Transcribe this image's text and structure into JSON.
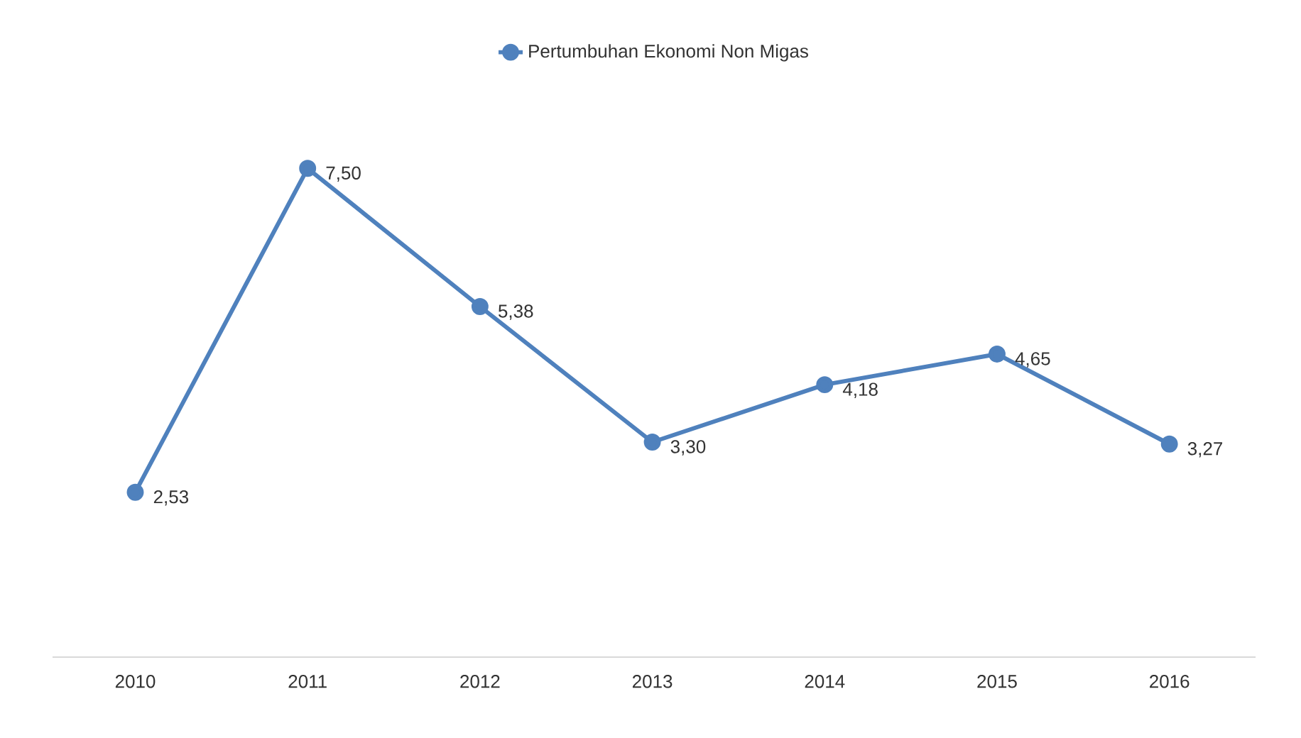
{
  "chart_data": {
    "type": "line",
    "categories": [
      "2010",
      "2011",
      "2012",
      "2013",
      "2014",
      "2015",
      "2016"
    ],
    "series": [
      {
        "name": "Pertumbuhan Ekonomi Non Migas",
        "color": "#4f81bd",
        "values": [
          2.53,
          7.5,
          5.38,
          3.3,
          4.18,
          4.65,
          3.27
        ],
        "value_labels": [
          "2,53",
          "7,50",
          "5,38",
          "3,30",
          "4,18",
          "4,65",
          "3,27"
        ]
      }
    ],
    "marker": "circle",
    "line_style": "solid",
    "legend": "top"
  }
}
